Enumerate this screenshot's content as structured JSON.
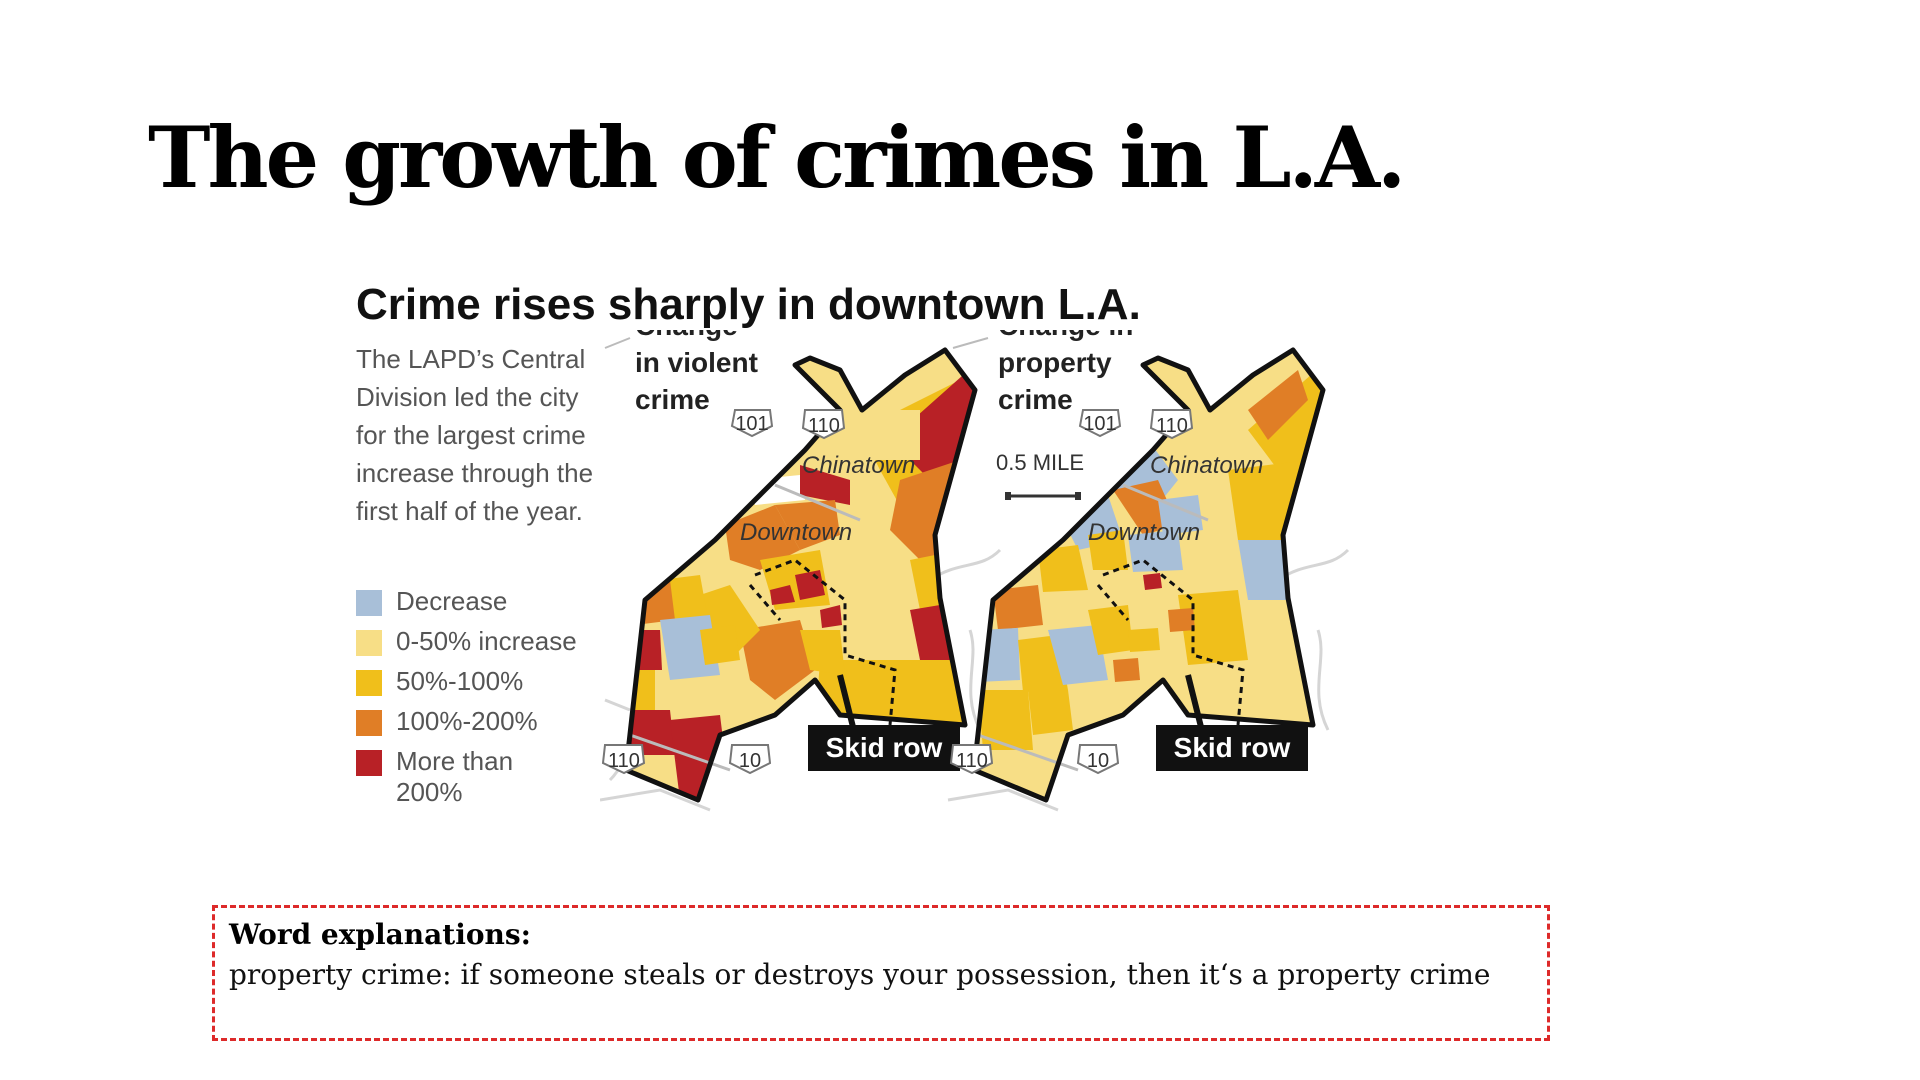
{
  "slide": {
    "title": "The growth of crimes in L.A."
  },
  "figure": {
    "title": "Crime rises sharply in downtown L.A.",
    "dek_lines": [
      "The LAPD’s Central",
      "Division led the city",
      "for the largest crime",
      "increase through the",
      "first half of the year."
    ],
    "legend": [
      {
        "label_lines": [
          "Decrease"
        ],
        "color": "#a8bfd8"
      },
      {
        "label_lines": [
          "0-50% increase"
        ],
        "color": "#f7de86"
      },
      {
        "label_lines": [
          "50%-100%"
        ],
        "color": "#f0bf1b"
      },
      {
        "label_lines": [
          "100%-200%"
        ],
        "color": "#e07e26"
      },
      {
        "label_lines": [
          "More than",
          "200%"
        ],
        "color": "#b82126"
      }
    ],
    "violent_map": {
      "heading_lines": [
        "Change",
        "in violent",
        "crime"
      ],
      "place_labels": {
        "chinatown": "Chinatown",
        "downtown": "Downtown"
      },
      "freeways": [
        "101",
        "110",
        "110",
        "10"
      ],
      "callout": "Skid row"
    },
    "property_map": {
      "heading_lines": [
        "Change in",
        "property",
        "crime"
      ],
      "scale_label": "0.5 MILE",
      "place_labels": {
        "chinatown": "Chinatown",
        "downtown": "Downtown"
      },
      "freeways": [
        "101",
        "110",
        "110",
        "10"
      ],
      "callout": "Skid row"
    }
  },
  "note": {
    "heading": "Word explanations:",
    "text": "property crime: if someone steals or destroys your possession, then it‘s a property crime"
  },
  "colors": {
    "decrease": "#a8bfd8",
    "increase_0_50": "#f7de86",
    "increase_50_100": "#f0bf1b",
    "increase_100_200": "#e07e26",
    "increase_over_200": "#b82126",
    "note_border": "#dd2a2a"
  }
}
